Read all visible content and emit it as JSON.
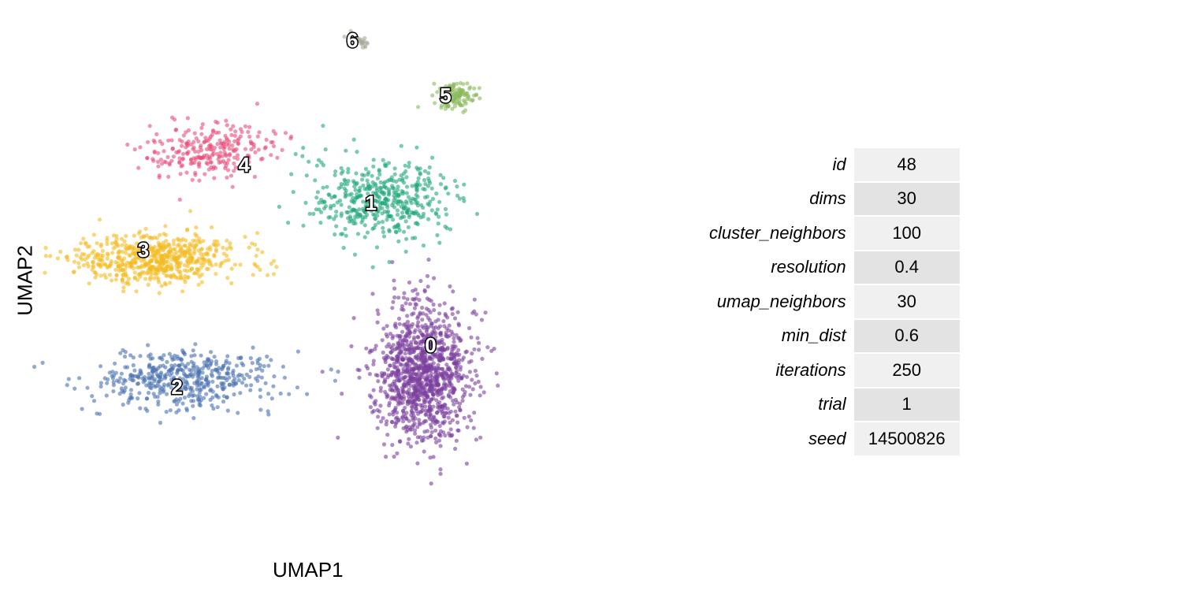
{
  "chart_data": {
    "type": "scatter",
    "title": "",
    "xlabel": "UMAP1",
    "ylabel": "UMAP2",
    "grid": false,
    "legend": "none",
    "xlim": [
      -7.5,
      7.5
    ],
    "ylim": [
      -7.5,
      7.5
    ],
    "clusters": [
      {
        "label": "0",
        "color": "#7b3f9e",
        "n": 1150,
        "center": [
          3.0,
          -2.8
        ],
        "spread": [
          1.15,
          1.75
        ],
        "label_pos": [
          3.2,
          -2.0
        ]
      },
      {
        "label": "1",
        "color": "#1fa67a",
        "n": 450,
        "center": [
          1.8,
          2.2
        ],
        "spread": [
          1.75,
          1.1
        ],
        "label_pos": [
          1.6,
          2.1
        ]
      },
      {
        "label": "2",
        "color": "#4a72b0",
        "n": 470,
        "center": [
          -3.4,
          -3.0
        ],
        "spread": [
          2.2,
          0.75
        ],
        "label_pos": [
          -3.6,
          -3.2
        ]
      },
      {
        "label": "3",
        "color": "#f3bb22",
        "n": 600,
        "center": [
          -4.2,
          0.5
        ],
        "spread": [
          2.0,
          0.65
        ],
        "label_pos": [
          -4.5,
          0.75
        ]
      },
      {
        "label": "4",
        "color": "#e84c79",
        "n": 260,
        "center": [
          -2.6,
          3.6
        ],
        "spread": [
          1.5,
          0.75
        ],
        "label_pos": [
          -1.8,
          3.2
        ]
      },
      {
        "label": "5",
        "color": "#8ab95c",
        "n": 120,
        "center": [
          3.8,
          5.2
        ],
        "spread": [
          0.55,
          0.35
        ],
        "label_pos": [
          3.6,
          5.2
        ]
      },
      {
        "label": "6",
        "color": "#a8a89a",
        "n": 45,
        "center": [
          1.2,
          6.8
        ],
        "spread": [
          0.25,
          0.15
        ],
        "label_pos": [
          1.1,
          6.8
        ]
      }
    ]
  },
  "params": [
    {
      "key": "id",
      "value": "48"
    },
    {
      "key": "dims",
      "value": "30"
    },
    {
      "key": "cluster_neighbors",
      "value": "100"
    },
    {
      "key": "resolution",
      "value": "0.4"
    },
    {
      "key": "umap_neighbors",
      "value": "30"
    },
    {
      "key": "min_dist",
      "value": "0.6"
    },
    {
      "key": "iterations",
      "value": "250"
    },
    {
      "key": "trial",
      "value": "1"
    },
    {
      "key": "seed",
      "value": "14500826"
    }
  ]
}
